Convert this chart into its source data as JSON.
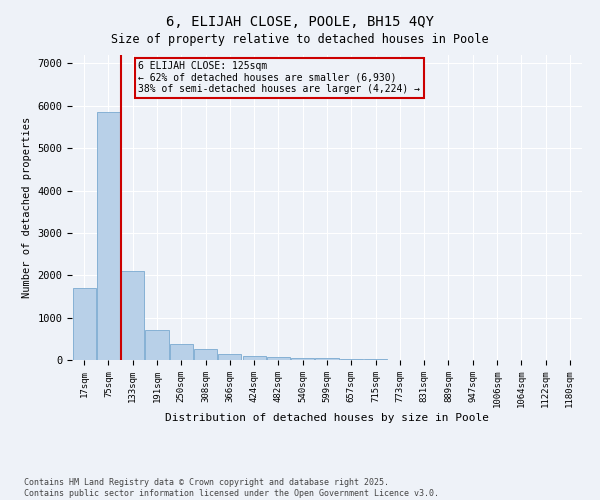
{
  "title": "6, ELIJAH CLOSE, POOLE, BH15 4QY",
  "subtitle": "Size of property relative to detached houses in Poole",
  "xlabel": "Distribution of detached houses by size in Poole",
  "ylabel": "Number of detached properties",
  "categories": [
    "17sqm",
    "75sqm",
    "133sqm",
    "191sqm",
    "250sqm",
    "308sqm",
    "366sqm",
    "424sqm",
    "482sqm",
    "540sqm",
    "599sqm",
    "657sqm",
    "715sqm",
    "773sqm",
    "831sqm",
    "889sqm",
    "947sqm",
    "1006sqm",
    "1064sqm",
    "1122sqm",
    "1180sqm"
  ],
  "values": [
    1700,
    5850,
    2100,
    700,
    370,
    270,
    130,
    100,
    70,
    55,
    50,
    25,
    15,
    5,
    5,
    3,
    2,
    2,
    1,
    1,
    1
  ],
  "bar_color": "#b8d0e8",
  "bar_edge_color": "#7aaad0",
  "vline_color": "#cc0000",
  "vline_pos": 1.5,
  "annotation_text": "6 ELIJAH CLOSE: 125sqm\n← 62% of detached houses are smaller (6,930)\n38% of semi-detached houses are larger (4,224) →",
  "annotation_box_color": "#cc0000",
  "ylim": [
    0,
    7200
  ],
  "yticks": [
    0,
    1000,
    2000,
    3000,
    4000,
    5000,
    6000,
    7000
  ],
  "background_color": "#eef2f8",
  "grid_color": "#ffffff",
  "footer_line1": "Contains HM Land Registry data © Crown copyright and database right 2025.",
  "footer_line2": "Contains public sector information licensed under the Open Government Licence v3.0."
}
